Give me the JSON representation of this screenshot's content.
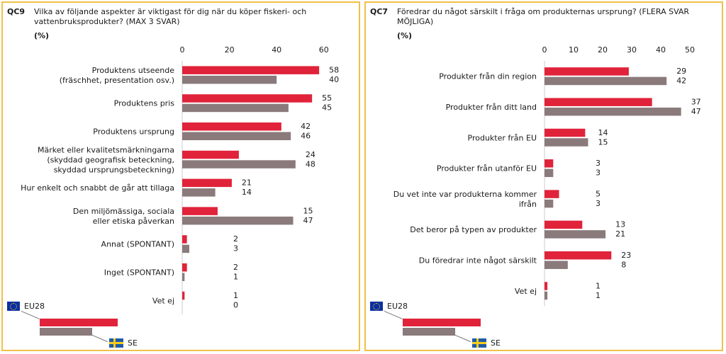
{
  "colors": {
    "eu": "#e0233a",
    "se": "#8a7a7b"
  },
  "legend": {
    "eu_label": "EU28",
    "se_label": "SE"
  },
  "chart_data": [
    {
      "type": "bar",
      "orientation": "horizontal",
      "code": "QC9",
      "title": "Vilka av följande aspekter är viktigast för dig när du köper fiskeri- och vattenbruksprodukter? (MAX 3 SVAR)",
      "unit": "(%)",
      "xlim": [
        0,
        60
      ],
      "ticks": [
        0,
        20,
        40,
        60
      ],
      "categories": [
        "Produktens utseende\n(fräschhet, presentation osv.)",
        "Produktens pris",
        "Produktens ursprung",
        "Märket eller kvalitetsmärkningarna\n(skyddad geografisk beteckning,\nskyddad ursprungsbeteckning)",
        "Hur enkelt och snabbt de går att tillaga",
        "Den miljömässiga, sociala\neller etiska påverkan",
        "Annat (SPONTANT)",
        "Inget (SPONTANT)",
        "Vet ej"
      ],
      "series": [
        {
          "name": "EU28",
          "values": [
            58,
            55,
            42,
            24,
            21,
            15,
            2,
            2,
            1
          ]
        },
        {
          "name": "SE",
          "values": [
            40,
            45,
            46,
            48,
            14,
            47,
            3,
            1,
            0
          ]
        }
      ]
    },
    {
      "type": "bar",
      "orientation": "horizontal",
      "code": "QC7",
      "title": "Föredrar du något särskilt i fråga om produkternas ursprung? (FLERA SVAR MÖJLIGA)",
      "unit": "(%)",
      "xlim": [
        0,
        50
      ],
      "ticks": [
        0,
        10,
        20,
        30,
        40,
        50
      ],
      "categories": [
        "Produkter från din region",
        "Produkter från ditt land",
        "Produkter från EU",
        "Produkter från utanför EU",
        "Du vet inte var produkterna kommer\nifrån",
        "Det beror på typen av produkter",
        "Du föredrar inte något särskilt",
        "Vet ej"
      ],
      "series": [
        {
          "name": "EU28",
          "values": [
            29,
            37,
            14,
            3,
            5,
            13,
            23,
            1
          ]
        },
        {
          "name": "SE",
          "values": [
            42,
            47,
            15,
            3,
            3,
            21,
            8,
            1
          ]
        }
      ]
    }
  ]
}
